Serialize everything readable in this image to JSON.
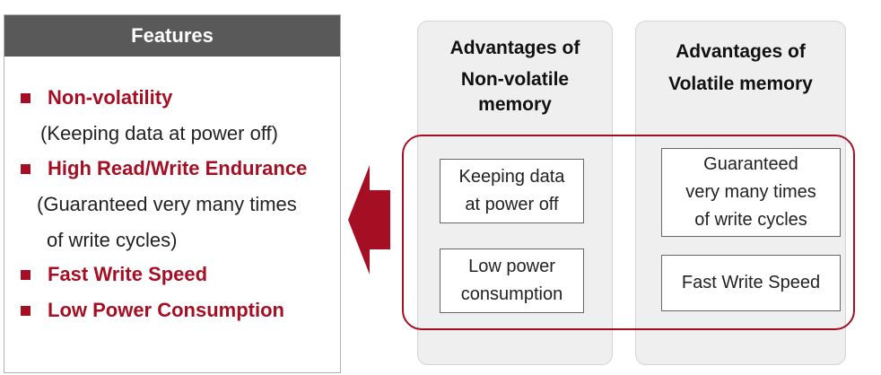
{
  "features": {
    "title": "Features",
    "items": [
      {
        "label": "Non-volatility",
        "note": "(Keeping data at power off)"
      },
      {
        "label": "High Read/Write Endurance",
        "note_line1": "(Guaranteed very many times",
        "note_line2": "of write cycles)"
      },
      {
        "label": "Fast Write Speed"
      },
      {
        "label": "Low Power Consumption"
      }
    ]
  },
  "arrow": {
    "direction": "left",
    "color": "#a50f24"
  },
  "nonvolatile": {
    "title_line1": "Advantages of",
    "title_line2": "Non-volatile",
    "title_line3": "memory",
    "boxes": [
      {
        "line1": "Keeping data",
        "line2": "at power off"
      },
      {
        "line1": "Low power",
        "line2": "consumption"
      }
    ]
  },
  "volatile": {
    "title_line1": "Advantages of",
    "title_line2": "Volatile memory",
    "boxes": [
      {
        "line1": "Guaranteed",
        "line2": "very many times",
        "line3": "of write cycles"
      },
      {
        "line1": "Fast Write Speed"
      }
    ]
  },
  "colors": {
    "accent": "#a50f24",
    "header": "#595959",
    "column": "#efefef"
  }
}
